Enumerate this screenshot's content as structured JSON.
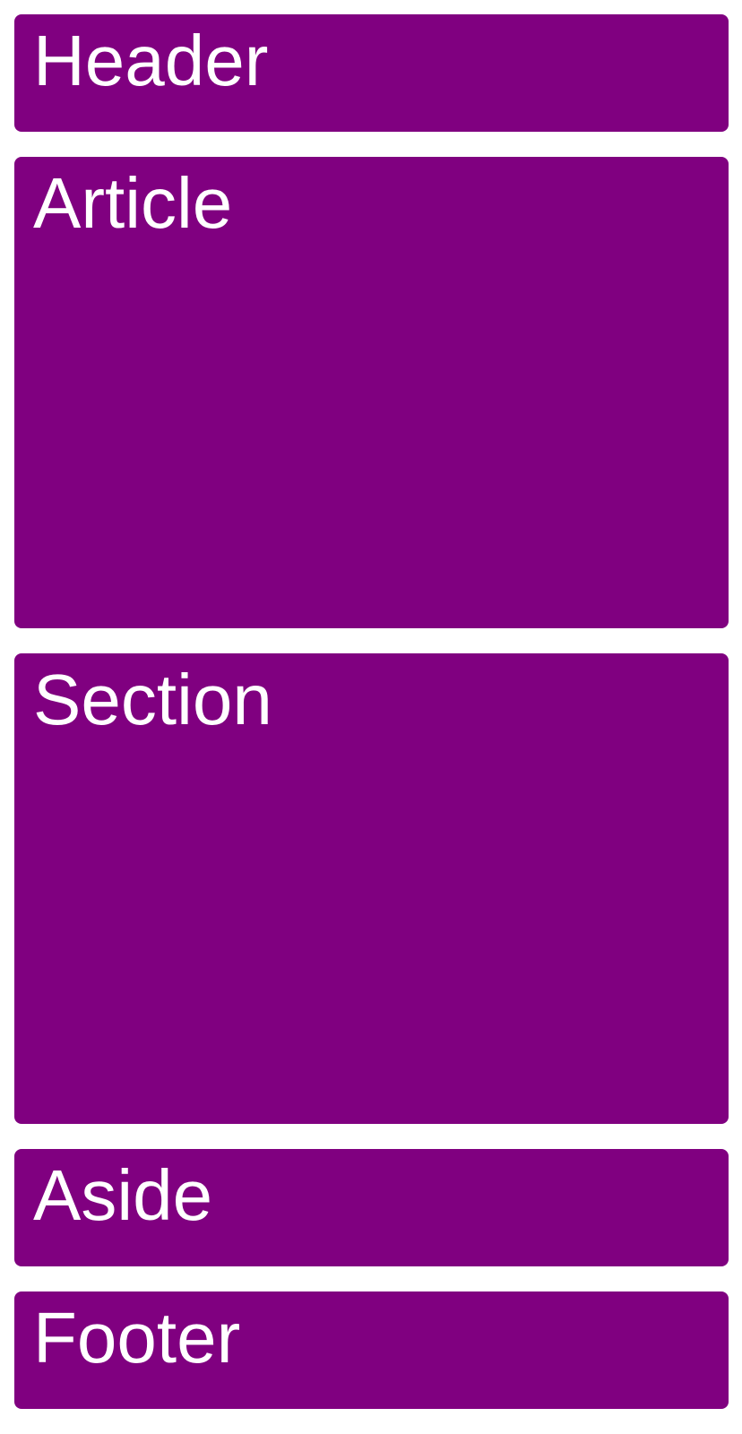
{
  "colors": {
    "box_background": "#800080",
    "text": "#ffffff",
    "page_background": "#ffffff"
  },
  "layout": {
    "header": {
      "label": "Header"
    },
    "article": {
      "label": "Article"
    },
    "section": {
      "label": "Section"
    },
    "aside": {
      "label": "Aside"
    },
    "footer": {
      "label": "Footer"
    }
  }
}
